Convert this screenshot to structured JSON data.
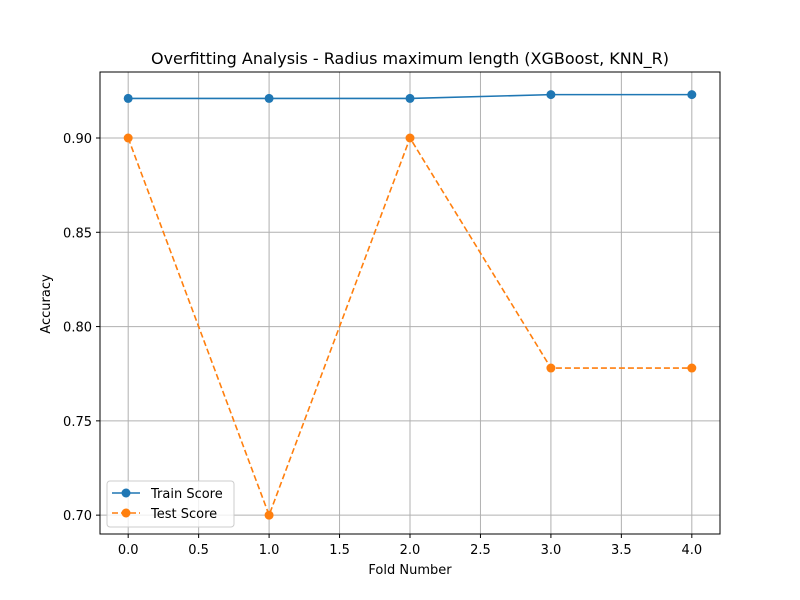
{
  "chart_data": {
    "type": "line",
    "title": "Overfitting Analysis - Radius maximum length (XGBoost, KNN_R)",
    "xlabel": "Fold Number",
    "ylabel": "Accuracy",
    "xlim": [
      -0.2,
      4.2
    ],
    "ylim": [
      0.69,
      0.935
    ],
    "xticks": [
      0.0,
      0.5,
      1.0,
      1.5,
      2.0,
      2.5,
      3.0,
      3.5,
      4.0
    ],
    "xtick_labels": [
      "0.0",
      "0.5",
      "1.0",
      "1.5",
      "2.0",
      "2.5",
      "3.0",
      "3.5",
      "4.0"
    ],
    "yticks": [
      0.7,
      0.75,
      0.8,
      0.85,
      0.9
    ],
    "ytick_labels": [
      "0.70",
      "0.75",
      "0.80",
      "0.85",
      "0.90"
    ],
    "grid": true,
    "legend_position": "lower-left",
    "x": [
      0,
      1,
      2,
      3,
      4
    ],
    "series": [
      {
        "name": "Train Score",
        "values": [
          0.921,
          0.921,
          0.921,
          0.923,
          0.923
        ],
        "color": "#1f77b4",
        "line_style": "solid",
        "marker": "circle"
      },
      {
        "name": "Test Score",
        "values": [
          0.9,
          0.7,
          0.9,
          0.778,
          0.778
        ],
        "color": "#ff7f0e",
        "line_style": "dashed",
        "marker": "circle"
      }
    ]
  }
}
